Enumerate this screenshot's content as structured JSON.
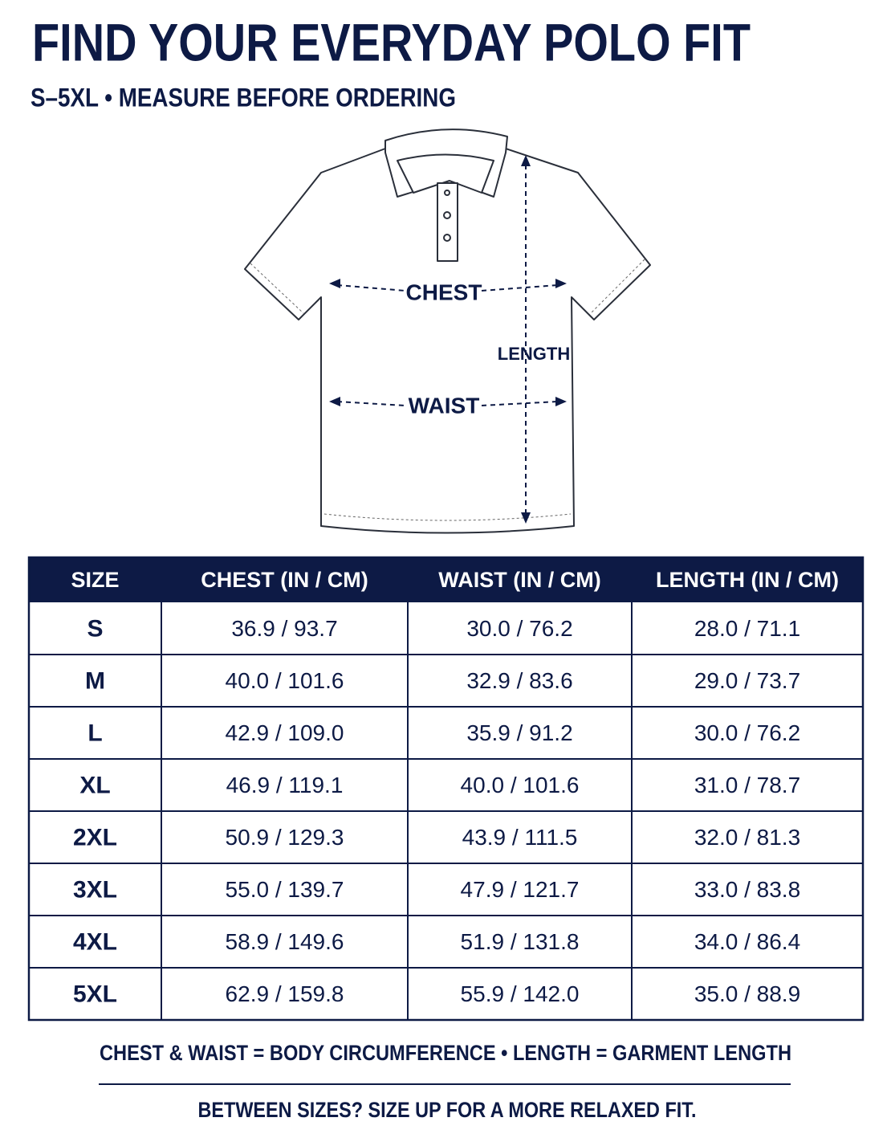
{
  "header": {
    "title": "FIND YOUR EVERYDAY POLO FIT",
    "subtitle": "S–5XL • MEASURE BEFORE ORDERING"
  },
  "diagram": {
    "labels": [
      "CHEST",
      "LENGTH",
      "WAIST"
    ]
  },
  "table": {
    "columns": [
      "SIZE",
      "CHEST (IN / CM)",
      "WAIST (IN / CM)",
      "LENGTH (IN / CM)"
    ],
    "rows": [
      [
        "S",
        "36.9 / 93.7",
        "30.0 / 76.2",
        "28.0 / 71.1"
      ],
      [
        "M",
        "40.0 / 101.6",
        "32.9 / 83.6",
        "29.0 / 73.7"
      ],
      [
        "L",
        "42.9 / 109.0",
        "35.9 / 91.2",
        "30.0 / 76.2"
      ],
      [
        "XL",
        "46.9 / 119.1",
        "40.0 / 101.6",
        "31.0 / 78.7"
      ],
      [
        "2XL",
        "50.9 / 129.3",
        "43.9 / 111.5",
        "32.0 / 81.3"
      ],
      [
        "3XL",
        "55.0 / 139.7",
        "47.9 / 121.7",
        "33.0 / 83.8"
      ],
      [
        "4XL",
        "58.9 / 149.6",
        "51.9 / 131.8",
        "34.0 / 86.4"
      ],
      [
        "5XL",
        "62.9 / 159.8",
        "55.9 / 142.0",
        "35.0 / 88.9"
      ]
    ]
  },
  "footer": {
    "notes": [
      "CHEST & WAIST = BODY CIRCUMFERENCE • LENGTH = GARMENT LENGTH",
      "BETWEEN SIZES? SIZE UP FOR A MORE RELAXED FIT."
    ]
  }
}
